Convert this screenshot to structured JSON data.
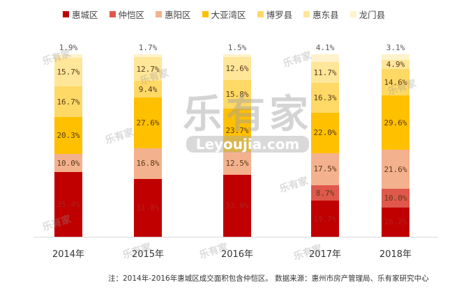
{
  "chart_data": {
    "type": "bar",
    "stacked": true,
    "percent": true,
    "title": "",
    "xlabel": "",
    "ylabel": "",
    "ylim": [
      0,
      100
    ],
    "grid": false,
    "legend_position": "top",
    "categories": [
      "2014年",
      "2015年",
      "2016年",
      "2017年",
      "2018年"
    ],
    "series": [
      {
        "name": "惠城区",
        "color": "#C00000",
        "values": [
          35.4,
          31.8,
          33.9,
          19.7,
          16.2
        ],
        "labels": [
          "35.4%",
          "31.8%",
          "33.9%",
          "19.7%",
          "16.2%"
        ]
      },
      {
        "name": "仲恺区",
        "color": "#E0584C",
        "values": [
          0,
          0,
          0,
          8.7,
          10.0
        ],
        "labels": [
          "",
          "",
          "",
          "8.7%",
          "10.0%"
        ]
      },
      {
        "name": "惠阳区",
        "color": "#F4B18E",
        "values": [
          10.0,
          16.8,
          12.5,
          17.5,
          21.6
        ],
        "labels": [
          "10.0%",
          "16.8%",
          "12.5%",
          "17.5%",
          "21.6%"
        ]
      },
      {
        "name": "大亚湾区",
        "color": "#FFC000",
        "values": [
          20.3,
          27.6,
          23.7,
          22.0,
          29.6
        ],
        "labels": [
          "20.3%",
          "27.6%",
          "23.7%",
          "22.0%",
          "29.6%"
        ]
      },
      {
        "name": "博罗县",
        "color": "#FFD966",
        "values": [
          16.7,
          9.4,
          15.8,
          16.3,
          14.6
        ],
        "labels": [
          "16.7%",
          "9.4%",
          "15.8%",
          "16.3%",
          "14.6%"
        ]
      },
      {
        "name": "惠东县",
        "color": "#FFE699",
        "values": [
          15.7,
          12.7,
          12.6,
          11.7,
          4.9
        ],
        "labels": [
          "15.7%",
          "12.7%",
          "12.6%",
          "11.7%",
          "4.9%"
        ]
      },
      {
        "name": "龙门县",
        "color": "#FFF2CC",
        "values": [
          1.9,
          1.7,
          1.5,
          4.1,
          3.1
        ],
        "labels": [
          "1.9%",
          "1.7%",
          "1.5%",
          "4.1%",
          "3.1%"
        ]
      }
    ],
    "annotations": [
      "注：2014年-2016年惠城区成交面积包含仲恺区。数据来源：惠州市房产管理局、乐有家研究中心"
    ]
  },
  "legend": [
    {
      "label": "惠城区",
      "color": "#C00000"
    },
    {
      "label": "仲恺区",
      "color": "#E0584C"
    },
    {
      "label": "惠阳区",
      "color": "#F4B18E"
    },
    {
      "label": "大亚湾区",
      "color": "#FFC000"
    },
    {
      "label": "博罗县",
      "color": "#FFD966"
    },
    {
      "label": "惠东县",
      "color": "#FFE699"
    },
    {
      "label": "龙门县",
      "color": "#FFF2CC"
    }
  ],
  "x_labels": [
    "2014年",
    "2015年",
    "2016年",
    "2017年",
    "2018年"
  ],
  "note": "注：2014年-2016年惠城区成交面积包含仲恺区。 数据来源：惠州市房产管理局、乐有家研究中心",
  "watermark": {
    "cn": "乐有家",
    "en": "Leyoujia.com",
    "mark": "®"
  }
}
